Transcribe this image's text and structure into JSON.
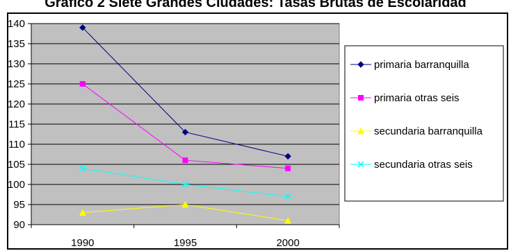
{
  "title": "Gráfico 2 Siete Grandes Ciudades: Tasas Brutas de Escolaridad",
  "chart_data": {
    "type": "line",
    "title": "Gráfico 2 Siete Grandes Ciudades: Tasas Brutas de Escolaridad",
    "xlabel": "",
    "ylabel": "",
    "categories": [
      "1990",
      "1995",
      "2000"
    ],
    "ylim": [
      90,
      140
    ],
    "yticks": [
      90,
      95,
      100,
      105,
      110,
      115,
      120,
      125,
      130,
      135,
      140
    ],
    "grid": true,
    "legend_position": "right",
    "plot_background": "#c0c0c0",
    "series": [
      {
        "name": "primaria barranquilla",
        "values": [
          139,
          113,
          107
        ],
        "color": "#000080",
        "marker": "diamond"
      },
      {
        "name": "primaria otras seis",
        "values": [
          125,
          106,
          104
        ],
        "color": "#ff00ff",
        "marker": "square"
      },
      {
        "name": "secundaria barranquilla",
        "values": [
          93,
          95,
          91
        ],
        "color": "#ffff00",
        "marker": "triangle"
      },
      {
        "name": "secundaria otras seis",
        "values": [
          104,
          100,
          97
        ],
        "color": "#00ffff",
        "marker": "x"
      }
    ]
  }
}
